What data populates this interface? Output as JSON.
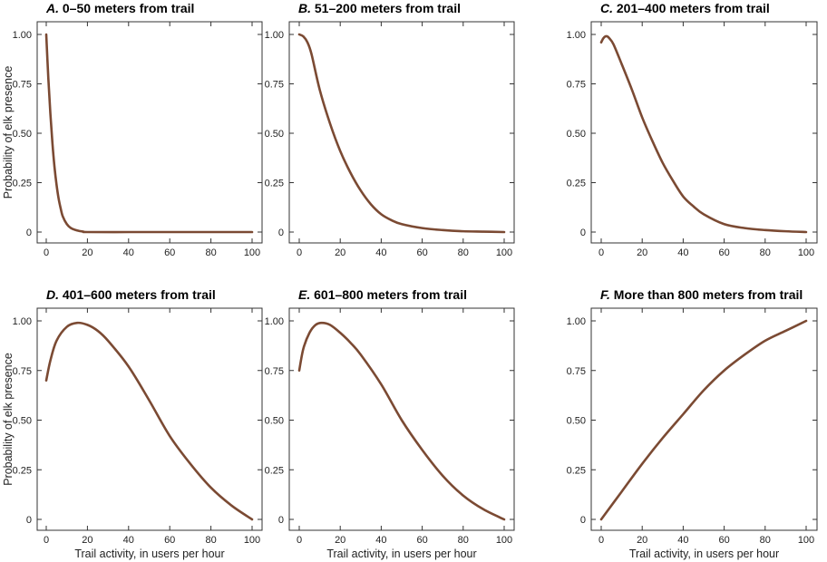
{
  "chart_data": [
    {
      "type": "line",
      "panel_letter": "A.",
      "title": "0–50 meters from trail",
      "xlabel": "",
      "ylabel": "Probability of elk presence",
      "x": [
        0,
        1,
        2,
        3,
        4,
        5,
        6,
        7,
        8,
        10,
        12,
        15,
        18,
        20,
        40,
        60,
        80,
        100
      ],
      "y": [
        1.0,
        0.78,
        0.6,
        0.45,
        0.33,
        0.24,
        0.17,
        0.12,
        0.08,
        0.04,
        0.02,
        0.008,
        0.002,
        0,
        0,
        0,
        0,
        0
      ]
    },
    {
      "type": "line",
      "panel_letter": "B.",
      "title": "51–200 meters from trail",
      "xlabel": "",
      "ylabel": "",
      "x": [
        0,
        2,
        4,
        6,
        10,
        15,
        20,
        25,
        30,
        35,
        40,
        45,
        50,
        60,
        70,
        80,
        90,
        100
      ],
      "y": [
        1.0,
        0.99,
        0.96,
        0.9,
        0.72,
        0.55,
        0.41,
        0.3,
        0.21,
        0.14,
        0.09,
        0.06,
        0.04,
        0.02,
        0.01,
        0.004,
        0.002,
        0
      ]
    },
    {
      "type": "line",
      "panel_letter": "C.",
      "title": "201–400 meters from trail",
      "xlabel": "",
      "ylabel": "",
      "x": [
        0,
        1,
        2,
        3,
        4,
        6,
        10,
        15,
        20,
        25,
        30,
        35,
        40,
        45,
        50,
        60,
        70,
        80,
        90,
        100
      ],
      "y": [
        0.96,
        0.98,
        0.99,
        0.99,
        0.98,
        0.95,
        0.85,
        0.72,
        0.58,
        0.46,
        0.35,
        0.26,
        0.18,
        0.13,
        0.09,
        0.04,
        0.02,
        0.01,
        0.004,
        0
      ]
    },
    {
      "type": "line",
      "panel_letter": "D.",
      "title": "401–600 meters from trail",
      "xlabel": "Trail activity, in users per hour",
      "ylabel": "Probability of elk presence",
      "x": [
        0,
        2,
        5,
        10,
        15,
        20,
        25,
        30,
        40,
        50,
        60,
        70,
        80,
        90,
        100
      ],
      "y": [
        0.7,
        0.8,
        0.9,
        0.97,
        0.99,
        0.98,
        0.95,
        0.9,
        0.77,
        0.6,
        0.42,
        0.28,
        0.16,
        0.07,
        0
      ]
    },
    {
      "type": "line",
      "panel_letter": "E.",
      "title": "601–800 meters from trail",
      "xlabel": "Trail activity, in users per hour",
      "ylabel": "",
      "x": [
        0,
        2,
        5,
        8,
        11,
        15,
        20,
        25,
        30,
        40,
        50,
        60,
        70,
        80,
        90,
        100
      ],
      "y": [
        0.75,
        0.86,
        0.94,
        0.98,
        0.99,
        0.98,
        0.94,
        0.89,
        0.83,
        0.68,
        0.5,
        0.35,
        0.22,
        0.12,
        0.05,
        0
      ]
    },
    {
      "type": "line",
      "panel_letter": "F.",
      "title": "More than 800 meters from trail",
      "xlabel": "Trail activity, in users per hour",
      "ylabel": "",
      "x": [
        0,
        10,
        20,
        30,
        40,
        50,
        60,
        70,
        80,
        90,
        100
      ],
      "y": [
        0,
        0.14,
        0.28,
        0.41,
        0.53,
        0.65,
        0.75,
        0.83,
        0.9,
        0.95,
        1.0
      ]
    }
  ],
  "shared": {
    "xlim": [
      0,
      100
    ],
    "ylim": [
      0,
      1
    ],
    "xticks": [
      "0",
      "20",
      "40",
      "60",
      "80",
      "100"
    ],
    "yticks": [
      "0",
      "0.25",
      "0.50",
      "0.75",
      "1.00"
    ],
    "grid": false,
    "line_color": "#7b4a33"
  }
}
